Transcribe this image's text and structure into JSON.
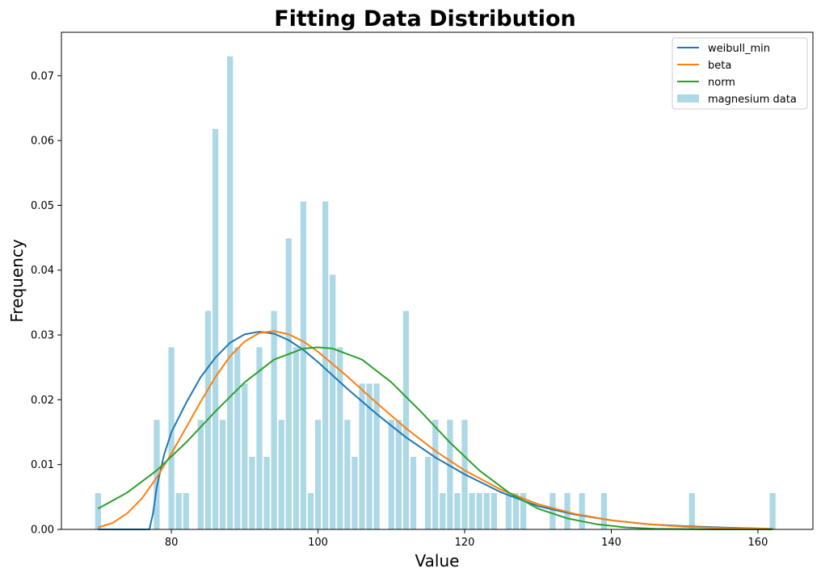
{
  "chart_data": {
    "type": "bar",
    "title": "Fitting Data Distribution",
    "xlabel": "Value",
    "ylabel": "Frequency",
    "xlim": [
      65,
      167.5
    ],
    "ylim": [
      0,
      0.0767
    ],
    "grid": false,
    "legend_placement": "top-right",
    "x_ticks": [
      80,
      100,
      120,
      140,
      160
    ],
    "y_ticks": [
      0.0,
      0.01,
      0.02,
      0.03,
      0.04,
      0.05,
      0.06,
      0.07
    ],
    "x_tick_labels": [
      "80",
      "100",
      "120",
      "140",
      "160"
    ],
    "y_tick_labels": [
      "0.00",
      "0.01",
      "0.02",
      "0.03",
      "0.04",
      "0.05",
      "0.06",
      "0.07"
    ],
    "bar_width": 0.8,
    "histogram": {
      "name": "magnesium data",
      "color": "#add8e6",
      "x": [
        70,
        78,
        80,
        81,
        82,
        84,
        85,
        86,
        87,
        88,
        89,
        90,
        91,
        92,
        93,
        94,
        95,
        96,
        97,
        98,
        99,
        100,
        101,
        102,
        103,
        104,
        105,
        106,
        107,
        108,
        110,
        111,
        112,
        113,
        115,
        116,
        117,
        118,
        119,
        120,
        121,
        122,
        123,
        124,
        126,
        127,
        128,
        132,
        134,
        136,
        139,
        151,
        162
      ],
      "y": [
        0.0056,
        0.0169,
        0.0281,
        0.0056,
        0.0056,
        0.0169,
        0.0337,
        0.0618,
        0.0169,
        0.073,
        0.0281,
        0.0225,
        0.0112,
        0.0281,
        0.0112,
        0.0337,
        0.0169,
        0.0449,
        0.0281,
        0.0506,
        0.0056,
        0.0169,
        0.0506,
        0.0393,
        0.0281,
        0.0169,
        0.0112,
        0.0225,
        0.0225,
        0.0225,
        0.0169,
        0.0169,
        0.0337,
        0.0112,
        0.0112,
        0.0169,
        0.0056,
        0.0169,
        0.0056,
        0.0169,
        0.0056,
        0.0056,
        0.0056,
        0.0056,
        0.0056,
        0.0056,
        0.0056,
        0.0056,
        0.0056,
        0.0056,
        0.0056,
        0.0056,
        0.0056
      ]
    },
    "series": [
      {
        "name": "weibull_min",
        "color": "#1f77b4",
        "x": [
          70,
          72,
          74,
          76,
          77,
          77.5,
          78,
          79,
          80,
          82,
          84,
          86,
          88,
          90,
          92,
          94,
          96,
          98,
          100,
          104,
          108,
          112,
          116,
          120,
          125,
          130,
          135,
          140,
          145,
          150,
          155,
          162
        ],
        "y": [
          0,
          0,
          0,
          0,
          0,
          0.0025,
          0.0065,
          0.0115,
          0.015,
          0.0195,
          0.0235,
          0.0265,
          0.0288,
          0.0301,
          0.0305,
          0.0302,
          0.0292,
          0.0277,
          0.0258,
          0.0217,
          0.0178,
          0.0142,
          0.0111,
          0.0085,
          0.0057,
          0.0036,
          0.0023,
          0.0014,
          0.0008,
          0.0005,
          0.0003,
          0.0001
        ]
      },
      {
        "name": "beta",
        "color": "#ff7f0e",
        "x": [
          70,
          72,
          74,
          76,
          78,
          80,
          82,
          84,
          86,
          88,
          90,
          92,
          94,
          96,
          98,
          100,
          104,
          108,
          112,
          116,
          120,
          125,
          130,
          135,
          140,
          145,
          150,
          155,
          162
        ],
        "y": [
          0.0003,
          0.001,
          0.0025,
          0.0048,
          0.008,
          0.0117,
          0.0157,
          0.0197,
          0.0235,
          0.0267,
          0.029,
          0.0303,
          0.0306,
          0.0301,
          0.029,
          0.0274,
          0.0236,
          0.0195,
          0.0156,
          0.0121,
          0.0091,
          0.0061,
          0.0039,
          0.0024,
          0.0014,
          0.0008,
          0.0004,
          0.0002,
          0.0001
        ]
      },
      {
        "name": "norm",
        "color": "#2ca02c",
        "x": [
          70,
          74,
          78,
          82,
          86,
          90,
          94,
          98,
          100,
          102,
          106,
          110,
          114,
          118,
          122,
          126,
          130,
          134,
          138,
          142,
          146,
          150,
          154,
          158,
          162
        ],
        "y": [
          0.0032,
          0.0057,
          0.0091,
          0.0134,
          0.0182,
          0.0227,
          0.0262,
          0.0279,
          0.0281,
          0.0279,
          0.0262,
          0.0227,
          0.0182,
          0.0134,
          0.0091,
          0.0057,
          0.0032,
          0.0017,
          0.0008,
          0.0003,
          0.0001,
          5e-05,
          0,
          0,
          0
        ]
      }
    ]
  }
}
